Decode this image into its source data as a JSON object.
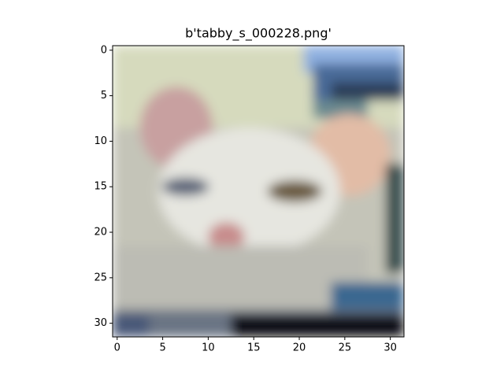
{
  "chart_data": {
    "type": "image",
    "title": "b'tabby_s_000228.png'",
    "xlim": [
      -0.5,
      31.5
    ],
    "ylim": [
      31.5,
      -0.5
    ],
    "xticks": [
      0,
      5,
      10,
      15,
      20,
      25,
      30
    ],
    "yticks": [
      0,
      5,
      10,
      15,
      20,
      25,
      30
    ]
  }
}
